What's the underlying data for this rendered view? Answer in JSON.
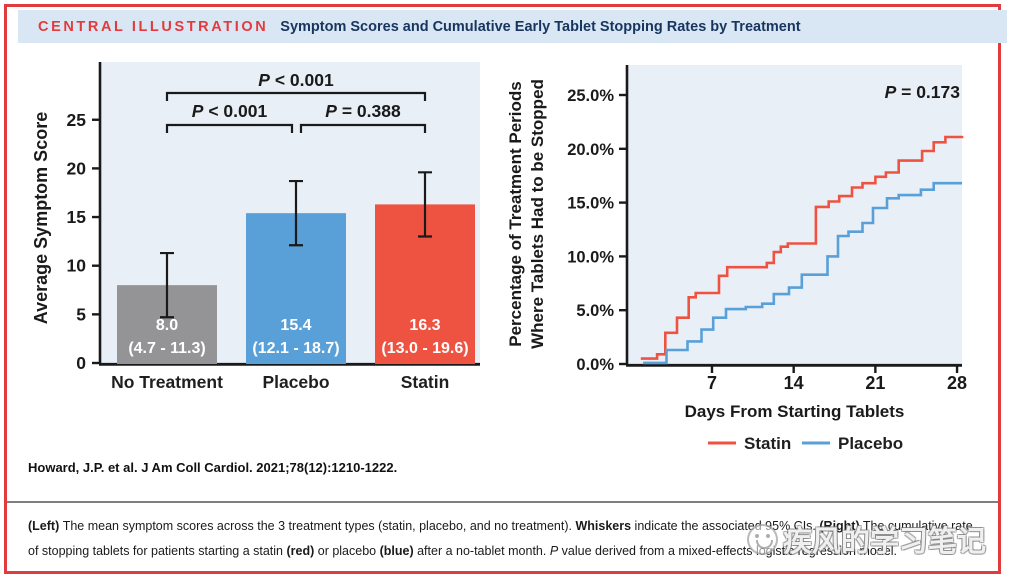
{
  "header": {
    "kicker": "CENTRAL ILLUSTRATION",
    "title": "Symptom Scores and Cumulative Early Tablet Stopping Rates by Treatment"
  },
  "citation": "Howard, J.P. et al. J Am Coll Cardiol. 2021;78(12):1210-1222.",
  "caption_segments": [
    {
      "text": "(Left) ",
      "bold": true
    },
    {
      "text": "The mean symptom scores across the 3 treatment types (statin, placebo, and no treatment). "
    },
    {
      "text": "Whiskers",
      "bold": true
    },
    {
      "text": " indicate the associated 95% CIs. "
    },
    {
      "text": "(Right)",
      "bold": true
    },
    {
      "text": " The cumulative rate of stopping tablets for patients starting a statin "
    },
    {
      "text": "(red)",
      "bold": true
    },
    {
      "text": " or placebo "
    },
    {
      "text": "(blue)",
      "bold": true
    },
    {
      "text": " after a no-tablet month. "
    },
    {
      "text": "P",
      "italic": true
    },
    {
      "text": " value derived from a mixed-effects logistic regression model."
    }
  ],
  "watermark": {
    "icon": "wechat-smiley-icon",
    "text": "疾风的学习笔记"
  },
  "colors": {
    "border_red": "#e23b3d",
    "header_bg": "#d9e6f3",
    "title_navy": "#17355e",
    "plot_bg": "#e9eff7",
    "axis_black": "#1a1a1a",
    "divider_gray": "#7f7f7f",
    "statin_red": "#ee5342",
    "placebo_blue": "#58a0d7",
    "no_treatment_gray": "#949497"
  },
  "chart_data": [
    {
      "type": "bar",
      "name": "symptom-scores",
      "ylabel": "Average Symptom Score",
      "ylim": [
        0,
        31
      ],
      "yticks": [
        0,
        5,
        10,
        15,
        20,
        25
      ],
      "grid": false,
      "categories": [
        "No Treatment",
        "Placebo",
        "Statin"
      ],
      "values": [
        8.0,
        15.4,
        16.3
      ],
      "ci_low": [
        4.7,
        12.1,
        13.0
      ],
      "ci_high": [
        11.3,
        18.7,
        19.6
      ],
      "bar_labels": [
        [
          "8.0",
          "(4.7 - 11.3)"
        ],
        [
          "15.4",
          "(12.1 - 18.7)"
        ],
        [
          "16.3",
          "(13.0 - 19.6)"
        ]
      ],
      "bar_colors": [
        "#949497",
        "#58a0d7",
        "#ee5342"
      ],
      "comparisons": [
        {
          "from": 0,
          "to": 2,
          "label": "P < 0.001",
          "level": "outer"
        },
        {
          "from": 0,
          "to": 1,
          "label": "P < 0.001",
          "level": "inner"
        },
        {
          "from": 1,
          "to": 2,
          "label": "P = 0.388",
          "level": "inner"
        }
      ]
    },
    {
      "type": "line",
      "name": "cumulative-stopping-rates",
      "line_style": "step-after",
      "ylabel_lines": [
        "Percentage of Treatment Periods",
        "Where Tablets Had to be Stopped"
      ],
      "xlabel": "Days From Starting Tablets",
      "annotation": "P = 0.173",
      "xlim": [
        0,
        28.5
      ],
      "ylim": [
        0,
        27.8
      ],
      "xticks": [
        7,
        14,
        21,
        28
      ],
      "ytick_labels": [
        "0.0%",
        "5.0%",
        "10.0%",
        "15.0%",
        "20.0%",
        "25.0%"
      ],
      "ytick_values": [
        0,
        5,
        10,
        15,
        20,
        25
      ],
      "grid": false,
      "legend_position": "bottom",
      "series": [
        {
          "name": "Statin",
          "color": "#ee5342",
          "points": [
            [
              0.9,
              0.5
            ],
            [
              2.3,
              0.9
            ],
            [
              3.0,
              2.9
            ],
            [
              4.0,
              4.3
            ],
            [
              5.0,
              6.2
            ],
            [
              5.6,
              6.6
            ],
            [
              7.6,
              8.2
            ],
            [
              8.3,
              9.0
            ],
            [
              11.7,
              9.4
            ],
            [
              12.3,
              10.4
            ],
            [
              12.9,
              10.9
            ],
            [
              13.5,
              11.2
            ],
            [
              15.9,
              14.6
            ],
            [
              17.0,
              15.1
            ],
            [
              17.9,
              15.6
            ],
            [
              19.0,
              16.4
            ],
            [
              19.9,
              16.8
            ],
            [
              21.0,
              17.4
            ],
            [
              21.9,
              17.8
            ],
            [
              23.0,
              18.9
            ],
            [
              25.0,
              19.8
            ],
            [
              26.0,
              20.6
            ],
            [
              27.0,
              21.1
            ],
            [
              28.5,
              21.2
            ]
          ]
        },
        {
          "name": "Placebo",
          "color": "#58a0d7",
          "points": [
            [
              1.1,
              0.1
            ],
            [
              3.1,
              1.3
            ],
            [
              4.9,
              2.1
            ],
            [
              6.1,
              3.2
            ],
            [
              7.1,
              4.3
            ],
            [
              8.2,
              5.1
            ],
            [
              9.9,
              5.3
            ],
            [
              11.3,
              5.6
            ],
            [
              12.3,
              6.5
            ],
            [
              13.6,
              7.1
            ],
            [
              14.7,
              8.3
            ],
            [
              16.9,
              10.0
            ],
            [
              17.8,
              11.9
            ],
            [
              18.7,
              12.3
            ],
            [
              19.9,
              13.1
            ],
            [
              20.8,
              14.5
            ],
            [
              22.0,
              15.4
            ],
            [
              23.0,
              15.7
            ],
            [
              24.9,
              16.2
            ],
            [
              26.0,
              16.8
            ],
            [
              28.5,
              16.8
            ]
          ]
        }
      ]
    }
  ]
}
